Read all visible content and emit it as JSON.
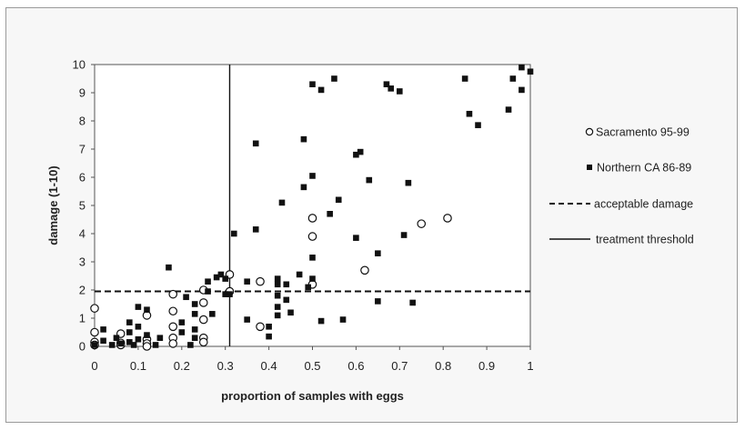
{
  "chart_data": {
    "type": "scatter",
    "title": "",
    "xlabel": "proportion of samples with eggs",
    "ylabel": "damage (1-10)",
    "xlim": [
      0,
      1
    ],
    "ylim": [
      0,
      10
    ],
    "xticks": [
      "0",
      "0.1",
      "0.2",
      "0.3",
      "0.4",
      "0.5",
      "0.6",
      "0.7",
      "0.8",
      "0.9",
      "1"
    ],
    "yticks": [
      "0",
      "1",
      "2",
      "3",
      "4",
      "5",
      "6",
      "7",
      "8",
      "9",
      "10"
    ],
    "grid": false,
    "legend_position": "right",
    "series": [
      {
        "name": "Sacramento 95-99",
        "marker": "open-circle",
        "color": "#111111",
        "points": [
          [
            0.0,
            1.35
          ],
          [
            0.0,
            0.5
          ],
          [
            0.0,
            0.15
          ],
          [
            0.0,
            0.05
          ],
          [
            0.06,
            0.45
          ],
          [
            0.06,
            0.12
          ],
          [
            0.06,
            0.05
          ],
          [
            0.12,
            1.1
          ],
          [
            0.12,
            0.25
          ],
          [
            0.12,
            0.1
          ],
          [
            0.12,
            0.0
          ],
          [
            0.18,
            1.85
          ],
          [
            0.18,
            1.25
          ],
          [
            0.18,
            0.7
          ],
          [
            0.18,
            0.3
          ],
          [
            0.18,
            0.1
          ],
          [
            0.25,
            2.0
          ],
          [
            0.25,
            1.55
          ],
          [
            0.25,
            0.95
          ],
          [
            0.25,
            0.3
          ],
          [
            0.25,
            0.15
          ],
          [
            0.31,
            2.55
          ],
          [
            0.31,
            1.95
          ],
          [
            0.38,
            2.3
          ],
          [
            0.38,
            0.7
          ],
          [
            0.5,
            4.55
          ],
          [
            0.5,
            3.9
          ],
          [
            0.5,
            2.2
          ],
          [
            0.62,
            2.7
          ],
          [
            0.75,
            4.35
          ],
          [
            0.81,
            4.55
          ]
        ]
      },
      {
        "name": "Northern CA 86-89",
        "marker": "filled-square",
        "color": "#111111",
        "points": [
          [
            0.0,
            0.05
          ],
          [
            0.02,
            0.6
          ],
          [
            0.02,
            0.2
          ],
          [
            0.04,
            0.05
          ],
          [
            0.05,
            0.3
          ],
          [
            0.06,
            0.1
          ],
          [
            0.08,
            0.85
          ],
          [
            0.08,
            0.5
          ],
          [
            0.08,
            0.15
          ],
          [
            0.09,
            0.05
          ],
          [
            0.1,
            0.7
          ],
          [
            0.1,
            0.25
          ],
          [
            0.1,
            1.4
          ],
          [
            0.12,
            1.3
          ],
          [
            0.12,
            0.4
          ],
          [
            0.14,
            0.05
          ],
          [
            0.15,
            0.3
          ],
          [
            0.17,
            2.8
          ],
          [
            0.2,
            0.85
          ],
          [
            0.2,
            0.5
          ],
          [
            0.21,
            1.75
          ],
          [
            0.22,
            0.05
          ],
          [
            0.23,
            1.5
          ],
          [
            0.23,
            1.15
          ],
          [
            0.23,
            0.6
          ],
          [
            0.23,
            0.3
          ],
          [
            0.26,
            2.3
          ],
          [
            0.26,
            1.95
          ],
          [
            0.27,
            1.15
          ],
          [
            0.28,
            2.45
          ],
          [
            0.29,
            2.55
          ],
          [
            0.3,
            2.4
          ],
          [
            0.3,
            1.85
          ],
          [
            0.31,
            1.85
          ],
          [
            0.32,
            4.0
          ],
          [
            0.35,
            2.3
          ],
          [
            0.35,
            0.95
          ],
          [
            0.37,
            7.2
          ],
          [
            0.37,
            4.15
          ],
          [
            0.4,
            0.7
          ],
          [
            0.4,
            0.35
          ],
          [
            0.42,
            2.4
          ],
          [
            0.42,
            2.2
          ],
          [
            0.42,
            1.8
          ],
          [
            0.42,
            1.4
          ],
          [
            0.42,
            1.1
          ],
          [
            0.43,
            5.1
          ],
          [
            0.44,
            2.2
          ],
          [
            0.44,
            1.65
          ],
          [
            0.45,
            1.2
          ],
          [
            0.47,
            2.55
          ],
          [
            0.48,
            7.35
          ],
          [
            0.48,
            5.65
          ],
          [
            0.49,
            2.1
          ],
          [
            0.5,
            9.3
          ],
          [
            0.5,
            6.05
          ],
          [
            0.5,
            3.15
          ],
          [
            0.5,
            2.4
          ],
          [
            0.52,
            9.1
          ],
          [
            0.52,
            0.9
          ],
          [
            0.54,
            4.7
          ],
          [
            0.55,
            9.5
          ],
          [
            0.56,
            5.2
          ],
          [
            0.57,
            0.95
          ],
          [
            0.6,
            6.8
          ],
          [
            0.6,
            3.85
          ],
          [
            0.61,
            6.9
          ],
          [
            0.63,
            5.9
          ],
          [
            0.65,
            3.3
          ],
          [
            0.65,
            1.6
          ],
          [
            0.67,
            9.3
          ],
          [
            0.68,
            9.15
          ],
          [
            0.7,
            9.05
          ],
          [
            0.71,
            3.95
          ],
          [
            0.72,
            5.8
          ],
          [
            0.73,
            1.55
          ],
          [
            0.85,
            9.5
          ],
          [
            0.86,
            8.25
          ],
          [
            0.88,
            7.85
          ],
          [
            0.95,
            8.4
          ],
          [
            0.96,
            9.5
          ],
          [
            0.98,
            9.9
          ],
          [
            0.98,
            9.1
          ],
          [
            1.0,
            9.75
          ]
        ]
      }
    ],
    "reference_lines": [
      {
        "name": "acceptable damage",
        "orientation": "horizontal",
        "value": 1.95,
        "style": "dashed"
      },
      {
        "name": "treatment threshold",
        "orientation": "vertical",
        "value": 0.31,
        "style": "solid"
      }
    ]
  }
}
